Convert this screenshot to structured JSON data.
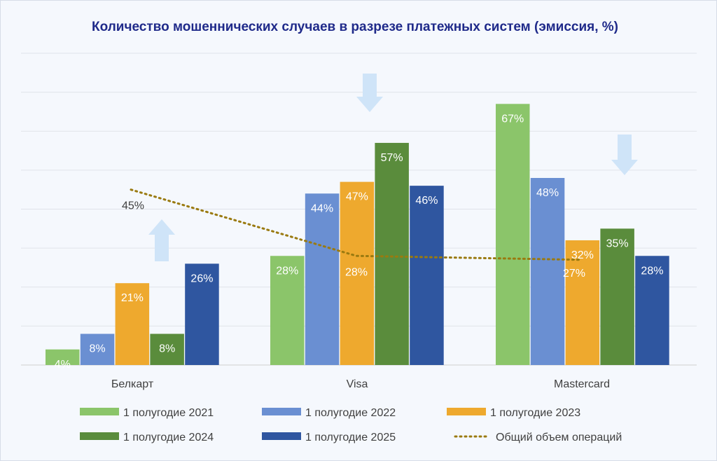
{
  "chart_data": {
    "type": "bar",
    "title": "Количество мошеннических случаев в разрезе платежных систем (эмиссия, %)",
    "categories": [
      "Белкарт",
      "Visa",
      "Mastercard"
    ],
    "ylim": [
      0,
      80
    ],
    "grid": true,
    "legend_position": "bottom",
    "series": [
      {
        "name": "1 полугодие 2021",
        "color": "#8bc56a",
        "values": [
          4,
          28,
          67
        ],
        "labels": [
          "4%",
          "28%",
          "67%"
        ]
      },
      {
        "name": "1 полугодие 2022",
        "color": "#6a8fd2",
        "values": [
          8,
          44,
          48
        ],
        "labels": [
          "8%",
          "44%",
          "48%"
        ]
      },
      {
        "name": "1 полугодие 2023",
        "color": "#eea92e",
        "values": [
          21,
          47,
          32
        ],
        "labels": [
          "21%",
          "47%",
          "32%"
        ]
      },
      {
        "name": "1 полугодие 2024",
        "color": "#5a8c3c",
        "values": [
          8,
          57,
          35
        ],
        "labels": [
          "8%",
          "57%",
          "35%"
        ]
      },
      {
        "name": "1 полугодие 2025",
        "color": "#2f56a0",
        "values": [
          26,
          46,
          28
        ],
        "labels": [
          "26%",
          "46%",
          "28%"
        ]
      }
    ],
    "line": {
      "name": "Общий объем операций",
      "type": "dotted",
      "color": "#9a7a10",
      "values": [
        45,
        28,
        27
      ],
      "labels": [
        "45%",
        "28%",
        "27%"
      ]
    },
    "arrows": [
      {
        "category": "Белкарт",
        "direction": "up"
      },
      {
        "category": "Visa",
        "direction": "down"
      },
      {
        "category": "Mastercard",
        "direction": "down"
      }
    ],
    "arrow_color": "#cfe4f8"
  }
}
